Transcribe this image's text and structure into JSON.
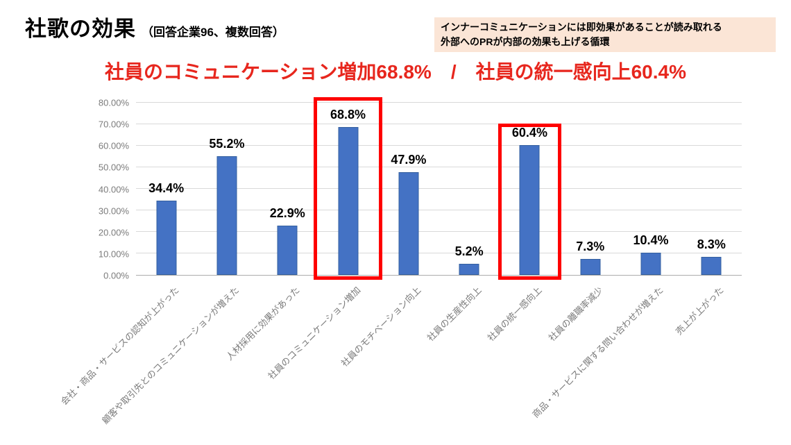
{
  "header": {
    "title": "社歌の効果",
    "title_suffix": "（回答企業96、複数回答）",
    "note_line1": "インナーコミュニケーションには即効果があることが読み取れる",
    "note_line2": "外部へのPRが内部の効果も上げる循環",
    "note_bg": "#FBE5D6",
    "headline": "社員のコミュニケーション増加68.8%　/　社員の統一感向上60.4%",
    "headline_color": "#E7261D"
  },
  "chart_data": {
    "type": "bar",
    "title": "社歌の効果（回答企業96、複数回答）",
    "xlabel": "",
    "ylabel": "",
    "categories": [
      "会社・商品・サービスの認知が上がった",
      "顧客や取引先とのコミュニケーションが増えた",
      "人材採用に効果があった",
      "社員のコミュニケーション増加",
      "社員のモチベーション向上",
      "社員の生産性向上",
      "社員の統一感向上",
      "社員の離職率減少",
      "商品・サービスに関する問い合わせが増えた",
      "売上が上がった"
    ],
    "values": [
      34.4,
      55.2,
      22.9,
      68.8,
      47.9,
      5.2,
      60.4,
      7.3,
      10.4,
      8.3
    ],
    "value_labels": [
      "34.4%",
      "55.2%",
      "22.9%",
      "68.8%",
      "47.9%",
      "5.2%",
      "60.4%",
      "7.3%",
      "10.4%",
      "8.3%"
    ],
    "ylim": [
      0,
      80
    ],
    "ytick_step": 10,
    "ytick_labels": [
      "0.00%",
      "10.00%",
      "20.00%",
      "30.00%",
      "40.00%",
      "50.00%",
      "60.00%",
      "70.00%",
      "80.00%"
    ],
    "grid": true,
    "legend": "none",
    "bar_color": "#4472C4",
    "bar_border": "#35609F",
    "highlight_color": "#FE0000",
    "highlights": [
      {
        "index": 3,
        "top_offset": -8,
        "side_pad": 6
      },
      {
        "index": 6,
        "top_offset": 30,
        "side_pad": 2
      }
    ]
  }
}
